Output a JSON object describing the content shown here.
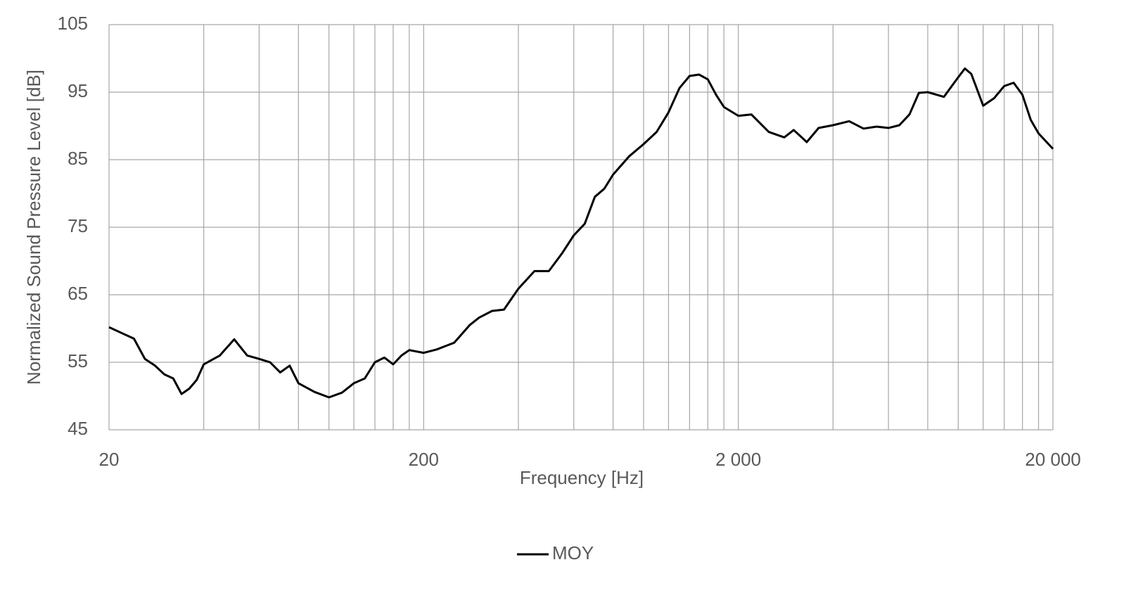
{
  "chart_data": {
    "type": "line",
    "xlabel": "Frequency [Hz]",
    "ylabel": "Normalized Sound Pressure Level [dB]",
    "xscale": "log",
    "xlim": [
      20,
      20000
    ],
    "ylim": [
      45,
      105
    ],
    "xticks": [
      20,
      200,
      {
        "value": 2000,
        "label": "2 000"
      },
      {
        "value": 20000,
        "label": "20 000"
      }
    ],
    "xminor": [
      40,
      60,
      80,
      100,
      120,
      140,
      160,
      180,
      400,
      600,
      800,
      1000,
      1200,
      1400,
      1600,
      1800,
      4000,
      6000,
      8000,
      10000,
      12000,
      14000,
      16000,
      18000
    ],
    "yticks": [
      45,
      55,
      65,
      75,
      85,
      95,
      105
    ],
    "grid": true,
    "legend": "bottom",
    "series": [
      {
        "name": "MOY",
        "color": "#000000",
        "x": [
          20,
          22,
          24,
          26,
          28,
          30,
          32,
          34,
          36,
          38,
          40,
          45,
          50,
          55,
          60,
          65,
          70,
          75,
          80,
          90,
          100,
          110,
          120,
          130,
          140,
          150,
          160,
          170,
          180,
          200,
          220,
          250,
          280,
          300,
          330,
          360,
          400,
          450,
          500,
          550,
          600,
          650,
          700,
          750,
          800,
          900,
          1000,
          1100,
          1200,
          1300,
          1400,
          1500,
          1600,
          1700,
          1800,
          2000,
          2200,
          2500,
          2800,
          3000,
          3300,
          3600,
          4000,
          4500,
          5000,
          5500,
          6000,
          6500,
          7000,
          7500,
          8000,
          9000,
          10000,
          10500,
          11000,
          12000,
          13000,
          14000,
          15000,
          16000,
          17000,
          18000,
          20000
        ],
        "values": [
          60.2,
          59.3,
          58.5,
          55.5,
          54.5,
          53.2,
          52.6,
          50.3,
          51.1,
          52.4,
          54.7,
          56,
          58.4,
          56,
          55.5,
          55,
          53.5,
          54.5,
          51.9,
          50.6,
          49.8,
          50.5,
          51.9,
          52.6,
          55,
          55.7,
          54.7,
          56,
          56.8,
          56.4,
          56.9,
          57.9,
          60.5,
          61.6,
          62.6,
          62.8,
          65.9,
          68.5,
          68.5,
          71.1,
          73.8,
          75.5,
          79.5,
          80.7,
          82.8,
          85.5,
          87.3,
          89.1,
          92,
          95.6,
          97.4,
          97.6,
          96.9,
          94.6,
          92.8,
          91.5,
          91.7,
          89.1,
          88.3,
          89.4,
          87.6,
          89.7,
          90.1,
          90.7,
          89.6,
          89.9,
          89.7,
          90.1,
          91.7,
          94.9,
          95,
          94.3,
          97.2,
          98.5,
          97.7,
          93,
          94.1,
          95.9,
          96.4,
          94.6,
          90.9,
          88.9,
          86.6
        ]
      }
    ]
  }
}
